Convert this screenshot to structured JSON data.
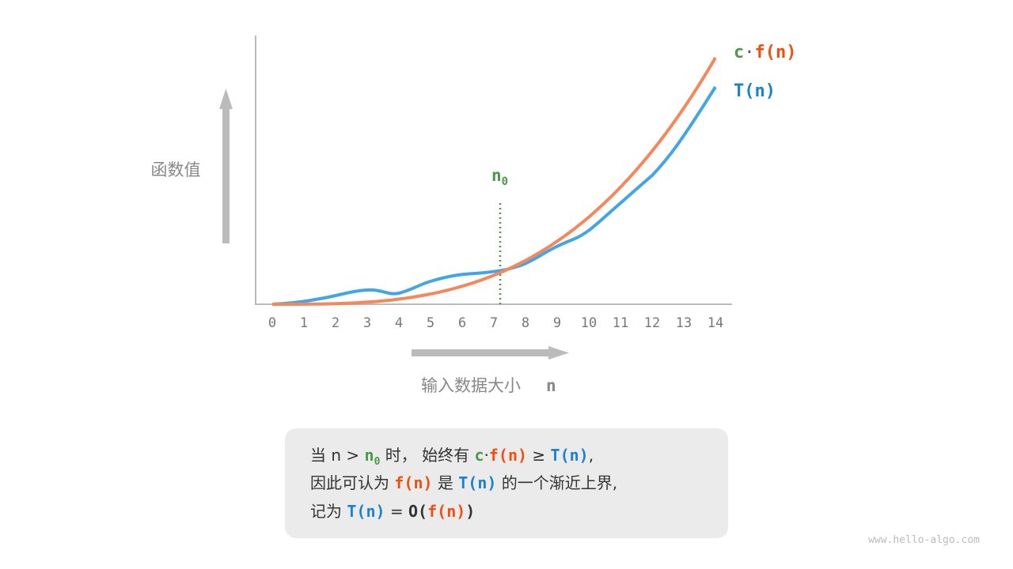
{
  "y_label": "函数值",
  "x_label": "输入数据大小",
  "x_var": "n",
  "n0": {
    "base": "n",
    "sub": "0"
  },
  "ticks": [
    "0",
    "1",
    "2",
    "3",
    "4",
    "5",
    "6",
    "7",
    "8",
    "9",
    "10",
    "11",
    "12",
    "13",
    "14"
  ],
  "legend": {
    "c": "c",
    "dot": "·",
    "f": "f(n)",
    "t": "T(n)"
  },
  "colors": {
    "cf": "#f5875a",
    "t": "#42a5e8",
    "n0": "#4b9a4b",
    "axis": "#bbbbbb"
  },
  "note": {
    "l1": {
      "a": "当 n > ",
      "n": "n",
      "sub": "0",
      "b": " 时， 始终有 ",
      "c": "c",
      "dot": "·",
      "f": "f(n)",
      "ge": " ≥ ",
      "t": "T(n)",
      "end": ","
    },
    "l2": {
      "a": "因此可认为 ",
      "f": "f(n)",
      "b": " 是 ",
      "t": "T(n)",
      "c": " 的一个渐近上界,"
    },
    "l3": {
      "a": "记为 ",
      "t": "T(n)",
      "eq": " = ",
      "o": "O(",
      "f": "f(n)",
      "close": ")"
    }
  },
  "watermark": "www.hello-algo.com"
}
